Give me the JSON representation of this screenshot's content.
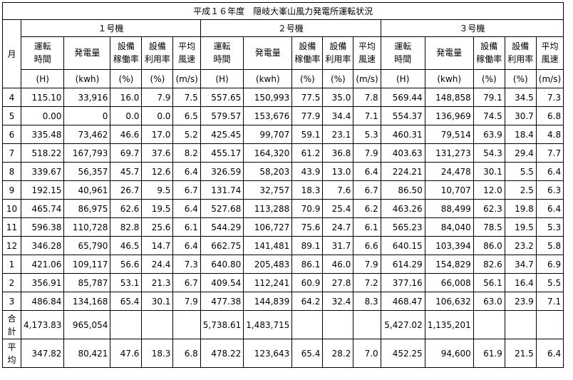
{
  "title": "平成１６年度　隠岐大峯山風力発電所運転状況",
  "month_header": "月",
  "groups": [
    "１号機",
    "２号機",
    "３号機"
  ],
  "columns": [
    {
      "top": "運転",
      "bottom": "時間",
      "unit": "(H)"
    },
    {
      "top": "発電量",
      "bottom": "",
      "unit": "(kwh)"
    },
    {
      "top": "設備",
      "bottom": "稼働率",
      "unit": "(%)"
    },
    {
      "top": "設備",
      "bottom": "利用率",
      "unit": "(%)"
    },
    {
      "top": "平均",
      "bottom": "風速",
      "unit": "(m/s)"
    }
  ],
  "rows": [
    {
      "month": "4",
      "v": [
        "115.10",
        "33,916",
        "16.0",
        "7.9",
        "7.5",
        "557.65",
        "150,993",
        "77.5",
        "35.0",
        "7.8",
        "569.44",
        "148,858",
        "79.1",
        "34.5",
        "7.3"
      ]
    },
    {
      "month": "5",
      "v": [
        "0.00",
        "0",
        "0.0",
        "0.0",
        "6.5",
        "579.57",
        "153,676",
        "77.9",
        "34.4",
        "7.1",
        "554.37",
        "136,969",
        "74.5",
        "30.7",
        "6.8"
      ]
    },
    {
      "month": "6",
      "v": [
        "335.48",
        "73,462",
        "46.6",
        "17.0",
        "5.2",
        "425.45",
        "99,707",
        "59.1",
        "23.1",
        "5.3",
        "460.31",
        "79,514",
        "63.9",
        "18.4",
        "4.8"
      ]
    },
    {
      "month": "7",
      "v": [
        "518.22",
        "167,793",
        "69.7",
        "37.6",
        "8.2",
        "455.17",
        "164,320",
        "61.2",
        "36.8",
        "7.9",
        "403.63",
        "131,273",
        "54.3",
        "29.4",
        "7.7"
      ]
    },
    {
      "month": "8",
      "v": [
        "339.67",
        "56,357",
        "45.7",
        "12.6",
        "6.4",
        "326.59",
        "58,203",
        "43.9",
        "13.0",
        "6.4",
        "224.21",
        "24,478",
        "30.1",
        "5.5",
        "6.4"
      ]
    },
    {
      "month": "9",
      "v": [
        "192.15",
        "40,961",
        "26.7",
        "9.5",
        "6.7",
        "131.74",
        "32,757",
        "18.3",
        "7.6",
        "6.7",
        "86.50",
        "10,707",
        "12.0",
        "2.5",
        "6.3"
      ]
    },
    {
      "month": "10",
      "v": [
        "465.74",
        "86,975",
        "62.6",
        "19.5",
        "6.4",
        "527.68",
        "113,288",
        "70.9",
        "25.4",
        "6.2",
        "463.26",
        "88,499",
        "62.3",
        "19.8",
        "6.4"
      ]
    },
    {
      "month": "11",
      "v": [
        "596.38",
        "110,728",
        "82.8",
        "25.6",
        "6.1",
        "544.29",
        "106,727",
        "75.6",
        "24.7",
        "6.1",
        "565.23",
        "84,040",
        "78.5",
        "19.5",
        "5.3"
      ]
    },
    {
      "month": "12",
      "v": [
        "346.28",
        "65,790",
        "46.5",
        "14.7",
        "6.4",
        "662.75",
        "141,481",
        "89.1",
        "31.7",
        "6.6",
        "640.15",
        "103,394",
        "86.0",
        "23.2",
        "5.8"
      ]
    },
    {
      "month": "1",
      "v": [
        "421.06",
        "109,117",
        "56.6",
        "24.4",
        "7.3",
        "640.80",
        "205,483",
        "86.1",
        "46.0",
        "7.9",
        "614.29",
        "154,829",
        "82.6",
        "34.7",
        "6.9"
      ]
    },
    {
      "month": "2",
      "v": [
        "356.91",
        "85,787",
        "53.1",
        "21.3",
        "6.7",
        "409.54",
        "112,241",
        "60.9",
        "27.8",
        "7.2",
        "377.16",
        "66,008",
        "56.1",
        "16.4",
        "5.5"
      ]
    },
    {
      "month": "3",
      "v": [
        "486.84",
        "134,168",
        "65.4",
        "30.1",
        "7.9",
        "477.38",
        "144,839",
        "64.2",
        "32.4",
        "8.3",
        "468.47",
        "106,632",
        "63.0",
        "23.9",
        "7.1"
      ]
    }
  ],
  "total_row": {
    "label": [
      "合",
      "計"
    ],
    "v": [
      "4,173.83",
      "965,054",
      "",
      "",
      "",
      "5,738.61",
      "1,483,715",
      "",
      "",
      "",
      "5,427.02",
      "1,135,201",
      "",
      "",
      ""
    ]
  },
  "average_row": {
    "label": [
      "平",
      "均"
    ],
    "v": [
      "347.82",
      "80,421",
      "47.6",
      "18.3",
      "6.8",
      "478.22",
      "123,643",
      "65.4",
      "28.2",
      "7.0",
      "452.25",
      "94,600",
      "61.9",
      "21.5",
      "6.4"
    ]
  }
}
